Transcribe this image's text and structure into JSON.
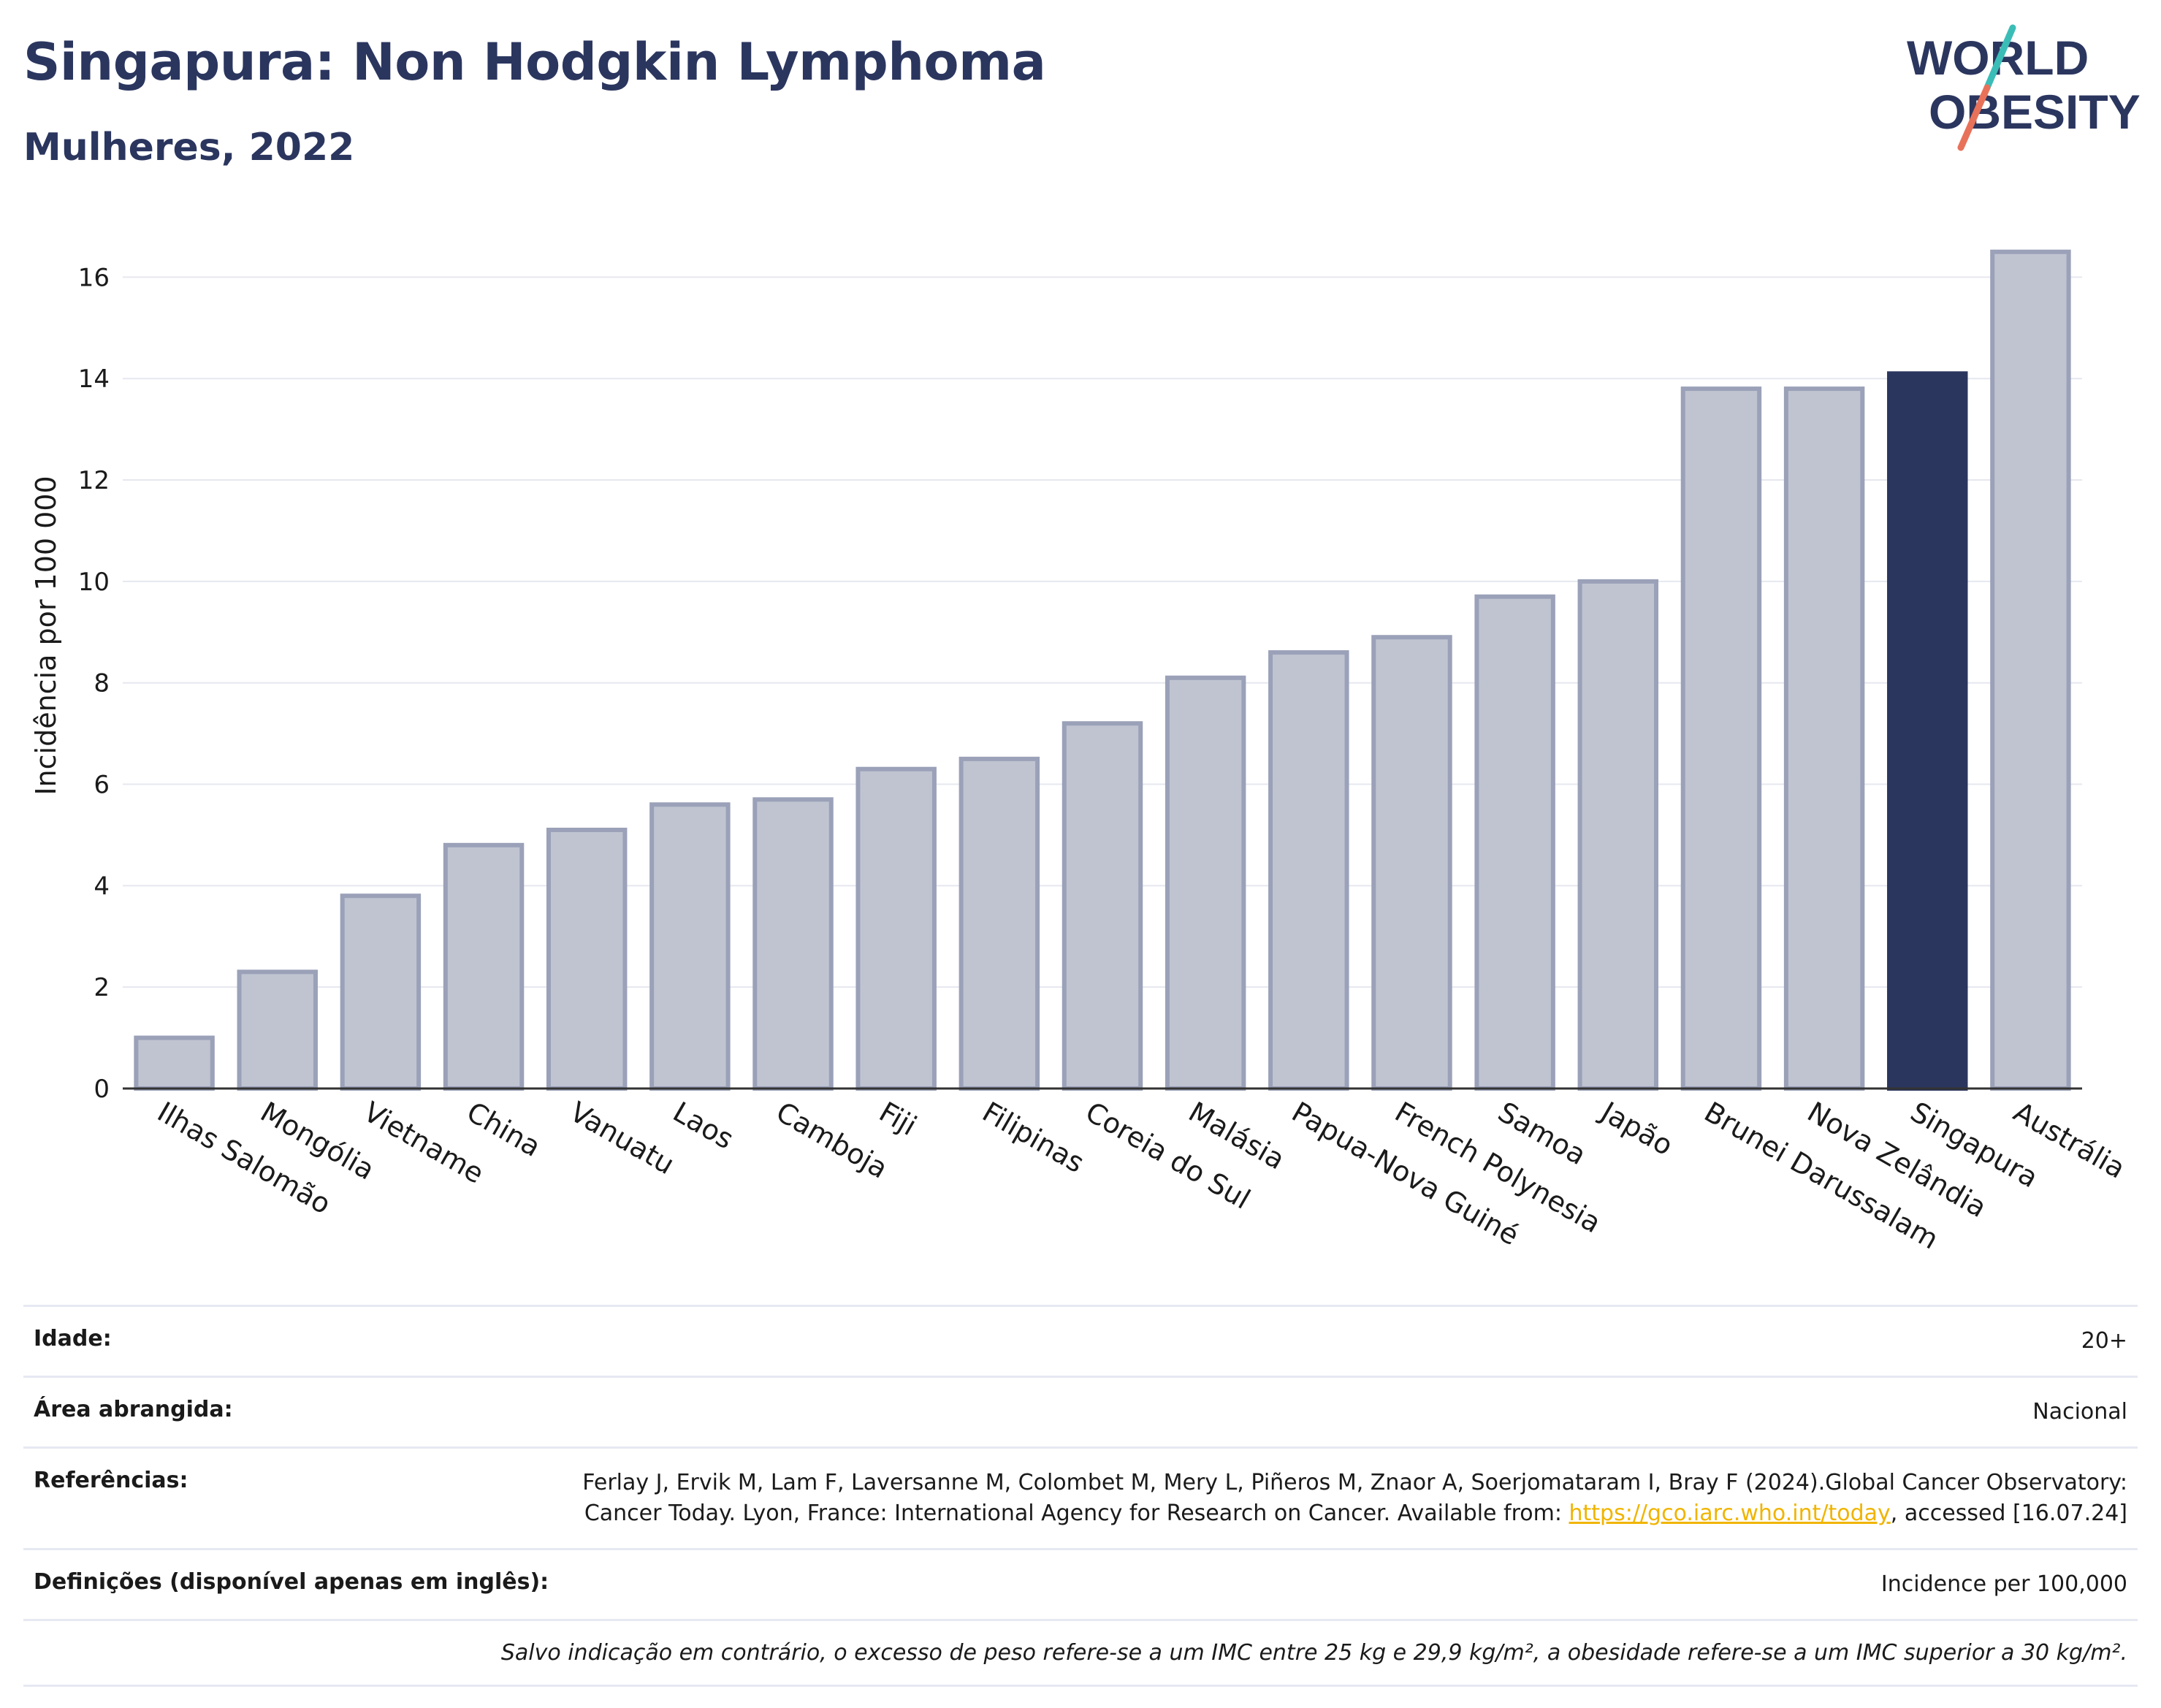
{
  "header": {
    "title": "Singapura: Non Hodgkin Lymphoma",
    "subtitle": "Mulheres, 2022",
    "logo_line1": "WORLD",
    "logo_line2": "OBESITY"
  },
  "colors": {
    "highlight_bar": "#2b365f",
    "other_bar_fill": "#c0c4d1",
    "other_bar_stroke": "#9aa1b8",
    "logo_navy": "#2b365f",
    "logo_teal": "#3bbdb7",
    "logo_coral": "#e8715a",
    "link": "#f0b400"
  },
  "chart_data": {
    "type": "bar",
    "title": "Singapura: Non Hodgkin Lymphoma",
    "subtitle": "Mulheres, 2022",
    "xlabel": "",
    "ylabel": "Incidência por 100 000",
    "ylim": [
      0,
      17
    ],
    "yticks": [
      0,
      2,
      4,
      6,
      8,
      10,
      12,
      14,
      16
    ],
    "grid": true,
    "highlight": "Singapura",
    "categories": [
      "Ilhas Salomão",
      "Mongólia",
      "Vietname",
      "China",
      "Vanuatu",
      "Laos",
      "Camboja",
      "Fiji",
      "Filipinas",
      "Coreia do Sul",
      "Malásia",
      "Papua-Nova Guiné",
      "French Polynesia",
      "Samoa",
      "Japão",
      "Brunei Darussalam",
      "Nova Zelândia",
      "Singapura",
      "Austrália"
    ],
    "values": [
      1.0,
      2.3,
      3.8,
      4.8,
      5.1,
      5.6,
      5.7,
      6.3,
      6.5,
      7.2,
      8.1,
      8.6,
      8.9,
      9.7,
      10.0,
      13.8,
      13.8,
      14.1,
      16.5
    ]
  },
  "info": {
    "age_label": "Idade:",
    "age_value": "20+",
    "area_label": "Área abrangida:",
    "area_value": "Nacional",
    "refs_label": "Referências:",
    "refs_text_1": "Ferlay J, Ervik M, Lam F, Laversanne M, Colombet M, Mery L, Piñeros M, Znaor A, Soerjomataram I, Bray F (2024).Global Cancer Observatory: Cancer Today. Lyon, France: International Agency for Research on Cancer. Available from: ",
    "refs_link": "https://gco.iarc.who.int/today",
    "refs_text_2": ", accessed [16.07.24]",
    "defs_label": "Definições (disponível apenas em inglês):",
    "defs_value": "Incidence per 100,000",
    "note": "Salvo indicação em contrário, o excesso de peso refere-se a um IMC entre 25 kg e 29,9 kg/m², a obesidade refere-se a um IMC superior a 30 kg/m²."
  }
}
